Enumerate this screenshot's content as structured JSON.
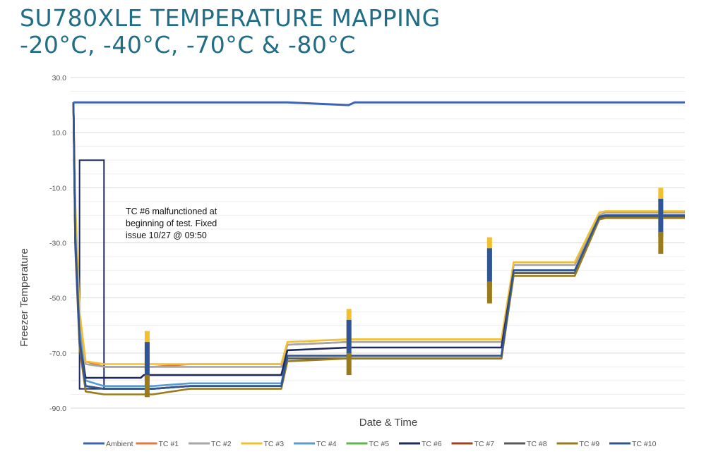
{
  "title_line1": "SU780XLE TEMPERATURE MAPPING",
  "title_line2": "-20°C, -40°C, -70°C & -80°C",
  "chart_data": {
    "type": "line",
    "xlabel": "Date & Time",
    "ylabel": "Freezer Temperature",
    "ylim": [
      -90,
      30
    ],
    "yticks": [
      "30.0",
      "10.0",
      "-10.0",
      "-30.0",
      "-50.0",
      "-70.0",
      "-90.0"
    ],
    "ytick_values": [
      30,
      10,
      -10,
      -30,
      -50,
      -70,
      -90
    ],
    "grid": true,
    "legend_position": "bottom",
    "x": [
      0,
      0.3,
      1,
      2,
      5,
      10,
      11,
      11.5,
      12,
      13,
      19,
      20,
      21,
      34,
      35,
      45,
      46,
      50,
      54,
      56,
      62,
      63,
      65,
      70,
      72,
      73,
      75,
      80,
      82,
      86,
      87,
      88,
      92,
      95,
      97,
      100
    ],
    "series": [
      {
        "name": "Ambient",
        "color": "#3d63b3",
        "values": [
          21,
          21,
          21,
          21,
          21,
          21,
          21,
          21,
          21,
          21,
          21,
          21,
          21,
          21,
          21,
          20,
          21,
          21,
          21,
          21,
          21,
          21,
          21,
          21,
          21,
          21,
          21,
          21,
          21,
          21,
          21,
          21,
          21,
          21,
          21,
          21
        ]
      },
      {
        "name": "TC #1",
        "color": "#e2793a",
        "values": [
          21,
          -20,
          -60,
          -73,
          -75,
          -75,
          -75,
          -75,
          -75,
          -75,
          -74,
          -74,
          -74,
          -74,
          -67,
          -66,
          -66,
          -66,
          -66,
          -66,
          -66,
          -66,
          -66,
          -66,
          -38,
          -38,
          -38,
          -38,
          -38,
          -20,
          -19,
          -19,
          -19,
          -19,
          -19,
          -19
        ]
      },
      {
        "name": "TC #2",
        "color": "#a6a6a6",
        "values": [
          21,
          -20,
          -60,
          -74,
          -75,
          -75,
          -75,
          -75,
          -75,
          -75,
          -75,
          -75,
          -75,
          -75,
          -67,
          -66,
          -66,
          -66,
          -66,
          -66,
          -66,
          -66,
          -66,
          -66,
          -38,
          -38,
          -38,
          -38,
          -38,
          -20,
          -19,
          -19,
          -19,
          -19,
          -19,
          -19
        ]
      },
      {
        "name": "TC #3",
        "color": "#f2c02e",
        "values": [
          21,
          -15,
          -55,
          -73,
          -74,
          -74,
          -74,
          -74,
          -74,
          -74,
          -74,
          -74,
          -74,
          -74,
          -66,
          -65,
          -65,
          -65,
          -65,
          -65,
          -65,
          -65,
          -65,
          -65,
          -37,
          -37,
          -37,
          -37,
          -37,
          -19,
          -18.5,
          -18.5,
          -18.5,
          -18.5,
          -18.5,
          -18.5
        ]
      },
      {
        "name": "TC #4",
        "color": "#5b9bd5",
        "values": [
          21,
          -25,
          -62,
          -80,
          -82,
          -82,
          -82,
          -82,
          -82,
          -82,
          -81,
          -81,
          -81,
          -81,
          -71,
          -71,
          -71,
          -71,
          -71,
          -71,
          -71,
          -71,
          -71,
          -71,
          -40,
          -40,
          -40,
          -40,
          -40,
          -20.5,
          -20,
          -20,
          -20,
          -20,
          -20,
          -20
        ]
      },
      {
        "name": "TC #5",
        "color": "#5cb54a",
        "values": [
          21,
          -30,
          -66,
          -82,
          -83,
          -83,
          -83,
          -83,
          -83,
          -83,
          -82,
          -82,
          -82,
          -82,
          -72,
          -72,
          -72,
          -72,
          -72,
          -72,
          -72,
          -72,
          -72,
          -72,
          -41,
          -41,
          -41,
          -41,
          -41,
          -21,
          -20.5,
          -20.5,
          -20.5,
          -20.5,
          -20.5,
          -20.5
        ]
      },
      {
        "name": "TC #6",
        "color": "#1e2a5e",
        "values": [
          21,
          -30,
          -66,
          -79,
          -79,
          -79,
          -79,
          -78,
          -78,
          -78,
          -78,
          -78,
          -78,
          -78,
          -69,
          -68,
          -68,
          -68,
          -68,
          -68,
          -68,
          -68,
          -68,
          -68,
          -40,
          -40,
          -40,
          -40,
          -40,
          -21,
          -20.5,
          -20.5,
          -20.5,
          -20.5,
          -20.5,
          -20.5
        ]
      },
      {
        "name": "TC #7",
        "color": "#a0421e",
        "values": [
          21,
          -28,
          -65,
          -82,
          -83,
          -83,
          -83,
          -83,
          -83,
          -83,
          -82,
          -82,
          -82,
          -82,
          -72,
          -72,
          -72,
          -72,
          -72,
          -72,
          -72,
          -72,
          -72,
          -72,
          -41,
          -41,
          -41,
          -41,
          -41,
          -21,
          -20.5,
          -20.5,
          -20.5,
          -20.5,
          -20.5,
          -20.5
        ]
      },
      {
        "name": "TC #8",
        "color": "#595959",
        "values": [
          21,
          -28,
          -65,
          -82,
          -83,
          -83,
          -83,
          -83,
          -83,
          -83,
          -82,
          -82,
          -82,
          -82,
          -72,
          -72,
          -72,
          -72,
          -72,
          -72,
          -72,
          -72,
          -72,
          -72,
          -41,
          -41,
          -41,
          -41,
          -41,
          -21,
          -20.5,
          -20.5,
          -20.5,
          -20.5,
          -20.5,
          -20.5
        ]
      },
      {
        "name": "TC #9",
        "color": "#9a7b1c",
        "values": [
          21,
          -32,
          -68,
          -84,
          -85,
          -85,
          -85,
          -85,
          -85,
          -85,
          -83,
          -83,
          -83,
          -83,
          -73,
          -72,
          -72,
          -72,
          -72,
          -72,
          -72,
          -72,
          -72,
          -72,
          -42,
          -42,
          -42,
          -42,
          -42,
          -21.5,
          -21,
          -21,
          -21,
          -21,
          -21,
          -21
        ]
      },
      {
        "name": "TC #10",
        "color": "#2f5597",
        "values": [
          21,
          -30,
          -66,
          -82,
          -83,
          -83,
          -83,
          -83,
          -83,
          -83,
          -82,
          -82,
          -82,
          -82,
          -71,
          -71,
          -71,
          -71,
          -71,
          -71,
          -71,
          -71,
          -71,
          -71,
          -40,
          -40,
          -40,
          -40,
          -40,
          -20.5,
          -20,
          -20,
          -20,
          -20,
          -20,
          -20
        ]
      }
    ],
    "annotations": [
      {
        "text": [
          "TC #6 malfunctioned at",
          "beginning of test. Fixed",
          "issue 10/27 @ 09:50"
        ]
      }
    ],
    "highlight_box": {
      "x": [
        1,
        5
      ],
      "y": [
        0,
        -83
      ]
    },
    "door_open_events": [
      12,
      45,
      68,
      96
    ]
  }
}
